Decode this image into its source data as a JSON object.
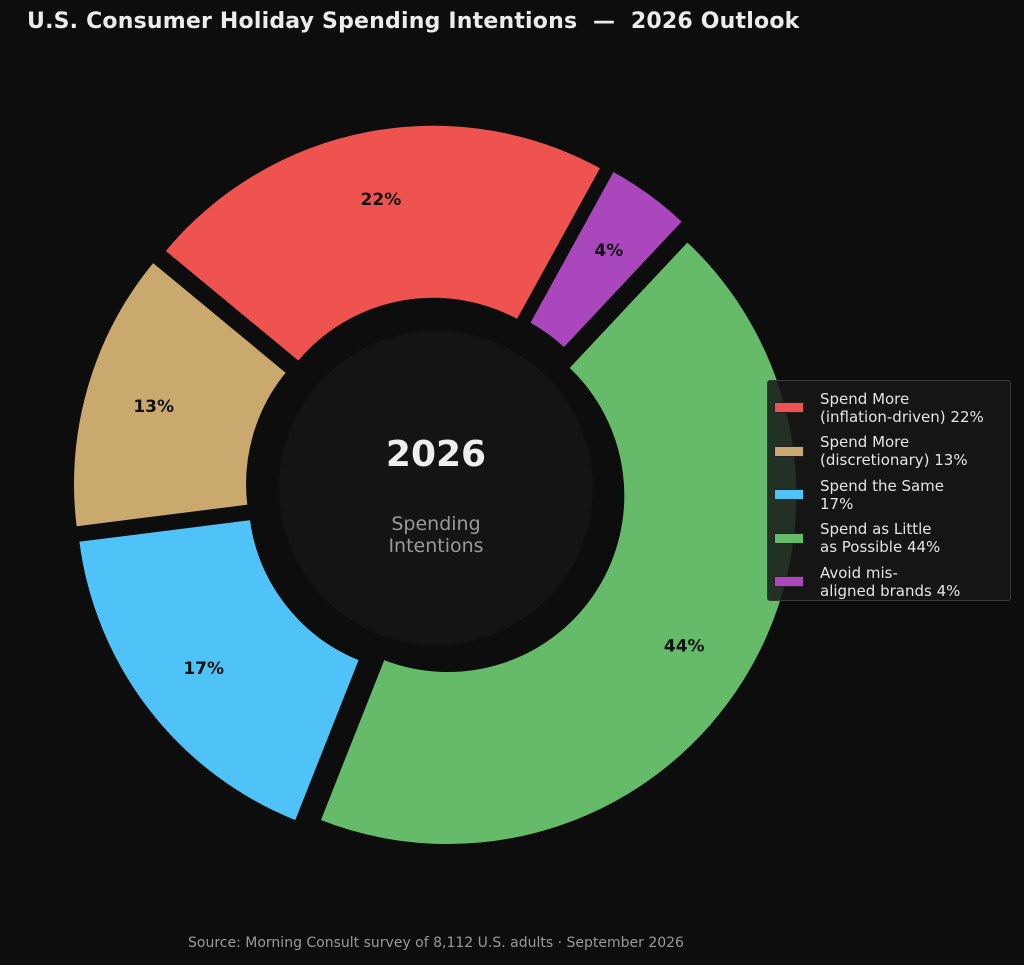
{
  "title": "U.S. Consumer Holiday Spending Intentions  —  2026 Outlook",
  "source": "Source: Morning Consult survey of 8,112 U.S. adults · September 2026",
  "center": {
    "year": "2026",
    "subtitle_line1": "Spending",
    "subtitle_line2": "Intentions"
  },
  "colors": {
    "background": "#0d0d0d",
    "center_disc": "#141414",
    "separator": "#0d0d0d"
  },
  "chart_data": {
    "type": "pie",
    "variant": "donut",
    "categories": [
      "Spend More (inflation-driven)",
      "Spend More (discretionary)",
      "Spend the Same",
      "Spend as Little as Possible",
      "Avoid mis-aligned brands"
    ],
    "values": [
      22,
      13,
      17,
      44,
      4
    ],
    "value_labels": [
      "22%",
      "13%",
      "17%",
      "44%",
      "4%"
    ],
    "colors": [
      "#ef5350",
      "#c9a96e",
      "#4fc3f7",
      "#66bb6a",
      "#ab47bc"
    ],
    "legend": [
      "Spend More\n(inflation-driven) 22%",
      "Spend More\n(discretionary) 13%",
      "Spend the Same\n17%",
      "Spend as Little\nas Possible 44%",
      "Avoid mis-\naligned brands 4%"
    ],
    "legend_position": "right",
    "exploded": true
  }
}
